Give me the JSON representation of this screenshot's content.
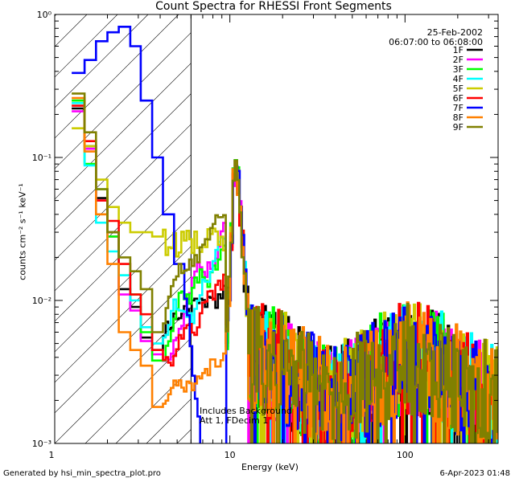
{
  "footer": {
    "generated_by": "Generated by hsi_min_spectra_plot.pro",
    "timestamp": "6-Apr-2023 01:48"
  },
  "chart_data": {
    "type": "line",
    "title": "Count Spectra for RHESSI Front Segments",
    "xlabel": "Energy (keV)",
    "ylabel": "counts cm⁻² s⁻¹ keV⁻¹",
    "xscale": "log",
    "yscale": "log",
    "xlim": [
      1,
      340
    ],
    "ylim": [
      0.001,
      1.0
    ],
    "x_ticks": [
      {
        "value": 10,
        "label": "10"
      },
      {
        "value": 100,
        "label": "100"
      }
    ],
    "x_edge_label": "1",
    "y_ticks": [
      {
        "value": 0.001,
        "label": "10⁻³"
      },
      {
        "value": 0.01,
        "label": "10⁻²"
      },
      {
        "value": 0.1,
        "label": "10⁻¹"
      },
      {
        "value": 1.0,
        "label": "10⁰"
      }
    ],
    "date": "25-Feb-2002",
    "time_range": "06:07:00 to 06:08:00",
    "annotations": [
      "Includes Background",
      "Att 1, FDecim 1"
    ],
    "excluded_region_keV": [
      1,
      6
    ],
    "legend_position": "top-right",
    "series": [
      {
        "name": "1F",
        "color": "#000000",
        "low": [
          0.22,
          0.12,
          0.052,
          0.03,
          0.012,
          0.009,
          0.0055,
          0.0045
        ]
      },
      {
        "name": "2F",
        "color": "#ff00ff",
        "low": [
          0.21,
          0.115,
          0.05,
          0.028,
          0.011,
          0.0085,
          0.0052,
          0.0042
        ]
      },
      {
        "name": "3F",
        "color": "#00ff00",
        "low": [
          0.25,
          0.09,
          0.06,
          0.028,
          0.015,
          0.011,
          0.006,
          0.0038
        ]
      },
      {
        "name": "4F",
        "color": "#00ffff",
        "low": [
          0.24,
          0.088,
          0.035,
          0.022,
          0.015,
          0.01,
          0.0065,
          0.005
        ]
      },
      {
        "name": "5F",
        "color": "#cccc00",
        "low": [
          0.16,
          0.12,
          0.07,
          0.045,
          0.035,
          0.03,
          0.03,
          0.028
        ]
      },
      {
        "name": "6F",
        "color": "#ff0000",
        "low": [
          0.23,
          0.13,
          0.05,
          0.036,
          0.018,
          0.011,
          0.008,
          0.0045
        ]
      },
      {
        "name": "7F",
        "color": "#0000ff",
        "low": [
          0.39,
          0.48,
          0.65,
          0.75,
          0.82,
          0.6,
          0.25,
          0.1,
          0.04,
          0.018
        ]
      },
      {
        "name": "8F",
        "color": "#ff8000",
        "low": [
          0.26,
          0.11,
          0.04,
          0.018,
          0.006,
          0.0045,
          0.0035,
          0.0018
        ]
      },
      {
        "name": "9F",
        "color": "#808000",
        "low": [
          0.28,
          0.15,
          0.06,
          0.03,
          0.02,
          0.016,
          0.012,
          0.006
        ]
      }
    ],
    "peak": {
      "energy_keV": 10.2,
      "value": 0.1
    },
    "high_energy_level": 0.003
  }
}
